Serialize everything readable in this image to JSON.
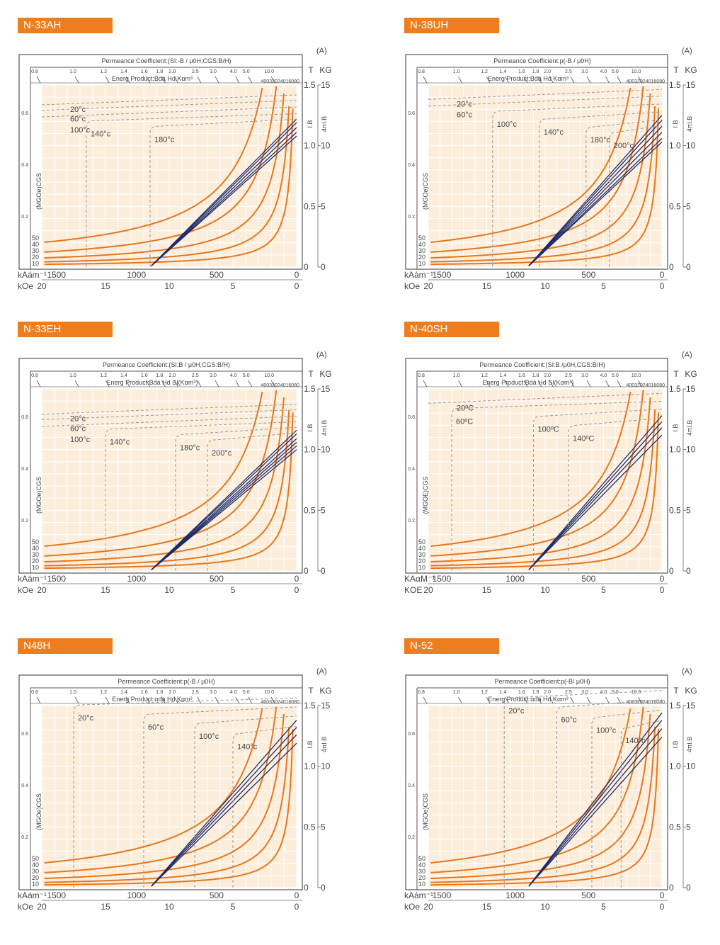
{
  "chart_data": [
    {
      "type": "line",
      "grade": "N-33AH",
      "corner_label": "(A)",
      "permeance_label": "Permeance Coefficient:(SI:-B / μ0H,CGS:B/H)",
      "energy_label": "Energ Product:Bdá Hd   Kαm³",
      "energy_ticks": "40032024016080",
      "permeance_ticks": [
        "0.8",
        "1.0",
        "1.2",
        "1.4",
        "1.6",
        "1.8",
        "2.0",
        "2.5",
        "3.0",
        "4.0",
        "5.0",
        "10.0"
      ],
      "x_ticks_ka": [
        "1500",
        "1000",
        "500",
        "0"
      ],
      "x_ticks_koe": [
        "20",
        "15",
        "10",
        "5",
        "0"
      ],
      "y_left_ticks": [
        "0.6",
        "0.4",
        "0.2"
      ],
      "y_t_ticks": [
        "1.5",
        "1.0",
        "0.5",
        "0"
      ],
      "y_kg_ticks": [
        "15",
        "10",
        "5",
        "0"
      ],
      "energy_values": [
        "50",
        "40",
        "30",
        "20",
        "10"
      ],
      "unit_T": "T",
      "unit_KG": "KG",
      "unit_ka": "kAám⁻¹",
      "unit_koe": "kOe",
      "label_ib": "I.B",
      "label_4pib": "4πI.B",
      "label_mgoe": "(MGOe)CGS",
      "temperatures": [
        {
          "label": "20°c",
          "knee_koe": null
        },
        {
          "label": "60°c",
          "knee_koe": null
        },
        {
          "label": "100°c",
          "knee_koe": null
        },
        {
          "label": "140°c",
          "knee_koe": 16.5
        },
        {
          "label": "180°c",
          "knee_koe": 11.5
        }
      ],
      "br_T": [
        1.22,
        1.19,
        1.15,
        1.11,
        1.08
      ],
      "xlim_koe": [
        20,
        0
      ],
      "ylim_T": [
        0,
        1.5
      ]
    },
    {
      "type": "line",
      "grade": "N-38UH",
      "corner_label": "(A)",
      "permeance_label": "Permeance Coefficient:p(-B / μ0H)",
      "energy_label": "Energ Product:Bdá Hd   Kαm³",
      "energy_ticks": "40032024016080",
      "permeance_ticks": [
        "0.8",
        "1.0",
        "1.2",
        "1.4",
        "1.6",
        "1.8",
        "2.0",
        "2.5",
        "3.0",
        "4.0",
        "5.0",
        "10.0"
      ],
      "x_ticks_ka": [
        "1500",
        "1000",
        "500",
        "0"
      ],
      "x_ticks_koe": [
        "20",
        "15",
        "10",
        "5",
        "0"
      ],
      "y_left_ticks": [
        "0.6",
        "0.4",
        "0.2"
      ],
      "y_t_ticks": [
        "1.5",
        "1.0",
        "0.5",
        "0"
      ],
      "y_kg_ticks": [
        "15",
        "10",
        "5",
        "0"
      ],
      "energy_values": [
        "50",
        "40",
        "30",
        "20",
        "10"
      ],
      "unit_T": "T",
      "unit_KG": "KG",
      "unit_ka": "kAám⁻¹",
      "unit_koe": "kOe",
      "label_ib": "I.B",
      "label_4pib": "4πI.B",
      "label_mgoe": "(MGOe)CGS",
      "temperatures": [
        {
          "label": "20°c",
          "knee_koe": null
        },
        {
          "label": "60°c",
          "knee_koe": null
        },
        {
          "label": "100°c",
          "knee_koe": 14.5
        },
        {
          "label": "140°c",
          "knee_koe": 10.5
        },
        {
          "label": "180°c",
          "knee_koe": 6.5
        },
        {
          "label": "200°c",
          "knee_koe": 4.5
        }
      ],
      "br_T": [
        1.25,
        1.21,
        1.16,
        1.11,
        1.06,
        1.03
      ],
      "xlim_koe": [
        20,
        0
      ],
      "ylim_T": [
        0,
        1.5
      ]
    },
    {
      "type": "line",
      "grade": "N-33EH",
      "corner_label": "(A)",
      "permeance_label": "Permeance Coefficient:(SI:B / μ0H,CGS:B/H)",
      "energy_label": "Energ Product:Bdá Hd       SI(Kαm³)",
      "energy_ticks": "40032024016080",
      "permeance_ticks": [
        "0.8",
        "1.0",
        "1.2",
        "1.4",
        "1.6",
        "1.8",
        "2.0",
        "2.5",
        "3.0",
        "4.0",
        "5.0",
        "10.0"
      ],
      "x_ticks_ka": [
        "1500",
        "1000",
        "500",
        "0"
      ],
      "x_ticks_koe": [
        "20",
        "15",
        "10",
        "5",
        "0"
      ],
      "y_left_ticks": [
        "0.6",
        "0.4",
        "0.2"
      ],
      "y_t_ticks": [
        "1.5",
        "1.0",
        "0.5",
        "0"
      ],
      "y_kg_ticks": [
        "15",
        "10",
        "5",
        "0"
      ],
      "energy_values": [
        "50",
        "40",
        "30",
        "20",
        "10"
      ],
      "unit_T": "T",
      "unit_KG": "KG",
      "unit_ka": "kAám⁻¹",
      "unit_koe": "kOe",
      "label_ib": "I.B",
      "label_4pib": "4πI.B",
      "label_mgoe": "(MGOe)CGS",
      "temperatures": [
        {
          "label": "20°c",
          "knee_koe": null
        },
        {
          "label": "60°c",
          "knee_koe": null
        },
        {
          "label": "100°c",
          "knee_koe": null
        },
        {
          "label": "140°c",
          "knee_koe": 15
        },
        {
          "label": "180°c",
          "knee_koe": 9.5
        },
        {
          "label": "200°c",
          "knee_koe": 7
        }
      ],
      "br_T": [
        1.16,
        1.13,
        1.09,
        1.06,
        1.03,
        1.0
      ],
      "xlim_koe": [
        20,
        0
      ],
      "ylim_T": [
        0,
        1.5
      ]
    },
    {
      "type": "line",
      "grade": "N-40SH",
      "corner_label": "(A)",
      "permeance_label": "Permeance Coefficient:(SI:B /μ0H,CGS:B/H)",
      "energy_label": "Energ Product:Bdá Hd   SI(Kαm³)",
      "energy_ticks": "40032024016080",
      "permeance_ticks": [
        "0.8",
        "1.0",
        "1.2",
        "1.4",
        "1.6",
        "1.8",
        "2.0",
        "2.5",
        "3.0",
        "4.0",
        "5.0",
        "10.0"
      ],
      "x_ticks_ka": [
        "1500",
        "1000",
        "500",
        "0"
      ],
      "x_ticks_koe": [
        "20",
        "15",
        "10",
        "5",
        "0"
      ],
      "y_left_ticks": [
        "0.6",
        "0.4",
        "0.2"
      ],
      "y_t_ticks": [
        "1.5",
        "1.0",
        "0.5",
        "0"
      ],
      "y_kg_ticks": [
        "15",
        "10",
        "5",
        "0"
      ],
      "energy_values": [
        "50",
        "40",
        "30",
        "20",
        "10"
      ],
      "unit_T": "T",
      "unit_KG": "KG",
      "unit_ka": "KAαM⁻¹",
      "unit_koe": "KOE",
      "label_ib": "I.B",
      "label_4pib": "4πI.B",
      "label_mgoe": "(MGOE)CGS",
      "temperatures": [
        {
          "label": "20ºC",
          "knee_koe": null
        },
        {
          "label": "60ºC",
          "knee_koe": 18
        },
        {
          "label": "100ºC",
          "knee_koe": 11
        },
        {
          "label": "140ºC",
          "knee_koe": 8
        }
      ],
      "br_T": [
        1.28,
        1.23,
        1.18,
        1.12
      ],
      "xlim_koe": [
        20,
        0
      ],
      "ylim_T": [
        0,
        1.5
      ]
    },
    {
      "type": "line",
      "grade": "N48H",
      "corner_label": "(A)",
      "permeance_label": "Permeance Coefficient:p(-B  / μ0H)",
      "energy_label": "Energ Product:αdá Hd     Kαm³",
      "energy_ticks": "40032024016080",
      "permeance_ticks": [
        "0.8",
        "1.0",
        "1.2",
        "1.4",
        "1.6",
        "1.8",
        "2.0",
        "2.5",
        "3.0",
        "4.0",
        "5.0",
        "10.0"
      ],
      "x_ticks_ka": [
        "1500",
        "1000",
        "500",
        "0"
      ],
      "x_ticks_koe": [
        "20",
        "15",
        "10",
        "5",
        "0"
      ],
      "y_left_ticks": [
        "0.6",
        "0.4",
        "0.2"
      ],
      "y_t_ticks": [
        "1.5",
        "1.0",
        "0.5",
        "0"
      ],
      "y_kg_ticks": [
        "15",
        "10",
        "5",
        "0"
      ],
      "energy_values": [
        "50",
        "40",
        "30",
        "20",
        "10"
      ],
      "unit_T": "T",
      "unit_KG": "KG",
      "unit_ka": "kAám⁻¹",
      "unit_koe": "kOe",
      "label_ib": "I.B",
      "label_4pib": "4πI.B",
      "label_mgoe": "(MGOe)CGS",
      "temperatures": [
        {
          "label": "20°c",
          "knee_koe": 17.5
        },
        {
          "label": "60°c",
          "knee_koe": 12
        },
        {
          "label": "100°c",
          "knee_koe": 8
        },
        {
          "label": "140°c",
          "knee_koe": 5
        }
      ],
      "br_T": [
        1.38,
        1.32,
        1.26,
        1.19
      ],
      "xlim_koe": [
        20,
        0
      ],
      "ylim_T": [
        0,
        1.5
      ]
    },
    {
      "type": "line",
      "grade": "N-52",
      "corner_label": "(A)",
      "permeance_label": "Permeance Coefficient:p(-B/ μ0H)",
      "energy_label": "Energ Product:αdá Hd     Kαm³",
      "energy_ticks": "40032024016080",
      "permeance_ticks": [
        "0.8",
        "1.0",
        "1.2",
        "1.4",
        "1.6",
        "1.8",
        "2.0",
        "2.5",
        "3.0",
        "4.0",
        "5.0",
        "10.0"
      ],
      "x_ticks_ka": [
        "1500",
        "1000",
        "500",
        "0"
      ],
      "x_ticks_koe": [
        "20",
        "15",
        "10",
        "5",
        "0"
      ],
      "y_left_ticks": [
        "0.6",
        "0.4",
        "0.2"
      ],
      "y_t_ticks": [
        "1.5",
        "1.0",
        "0.5",
        "0"
      ],
      "y_kg_ticks": [
        "15",
        "10",
        "5",
        "0"
      ],
      "energy_values": [
        "50",
        "40",
        "30",
        "20",
        "10"
      ],
      "unit_T": "T",
      "unit_KG": "KG",
      "unit_ka": "kAám⁻¹",
      "unit_koe": "kOe",
      "label_ib": "I.B",
      "label_4pib": "4πI.B",
      "label_mgoe": "(MGOe)CGS",
      "temperatures": [
        {
          "label": "20°c",
          "knee_koe": 13.5
        },
        {
          "label": "60°c",
          "knee_koe": 9
        },
        {
          "label": "100°c",
          "knee_koe": 6
        },
        {
          "label": "140°c",
          "knee_koe": 3.5
        }
      ],
      "br_T": [
        1.44,
        1.38,
        1.31,
        1.24
      ],
      "xlim_koe": [
        20,
        0
      ],
      "ylim_T": [
        0,
        1.5
      ]
    }
  ]
}
